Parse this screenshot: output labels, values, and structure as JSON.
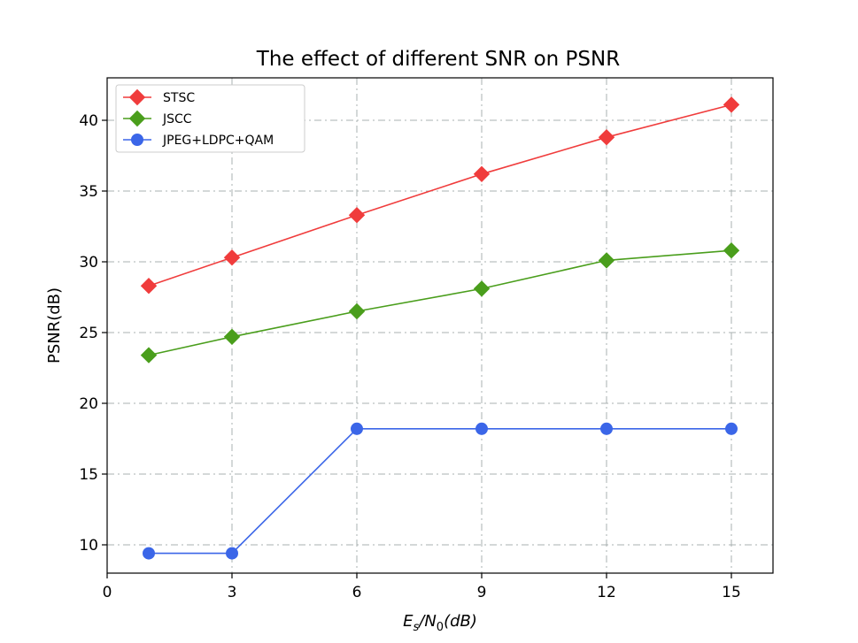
{
  "chart_data": {
    "type": "line",
    "title": "The effect of different SNR on PSNR",
    "xlabel_main": "E",
    "xlabel_sub1": "s",
    "xlabel_sep": "/N",
    "xlabel_sub2": "0",
    "xlabel_unit": "(dB)",
    "ylabel": "PSNR(dB)",
    "x": [
      1,
      3,
      6,
      9,
      12,
      15
    ],
    "xlim": [
      0,
      16
    ],
    "ylim": [
      8,
      43
    ],
    "xticks": [
      0,
      3,
      6,
      9,
      12,
      15
    ],
    "yticks": [
      10,
      15,
      20,
      25,
      30,
      35,
      40
    ],
    "grid": true,
    "legend_position": "top-left",
    "series": [
      {
        "name": "STSC",
        "color": "#f03c3c",
        "marker": "diamond",
        "values": [
          28.3,
          30.3,
          33.3,
          36.2,
          38.8,
          41.1
        ]
      },
      {
        "name": "JSCC",
        "color": "#4a9e1c",
        "marker": "diamond",
        "values": [
          23.4,
          24.7,
          26.5,
          28.1,
          30.1,
          30.8
        ]
      },
      {
        "name": "JPEG+LDPC+QAM",
        "color": "#3b66e8",
        "marker": "circle",
        "values": [
          9.4,
          9.4,
          18.2,
          18.2,
          18.2,
          18.2
        ]
      }
    ]
  }
}
